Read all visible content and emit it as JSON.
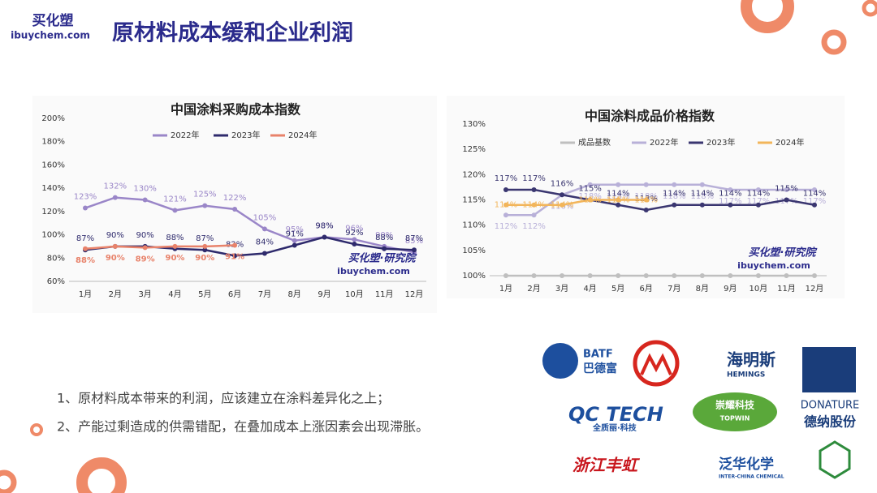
{
  "header": {
    "brand": "买化塑",
    "site": "ibuychem.com",
    "title": "原材料成本缓和企业利润"
  },
  "chart_data": [
    {
      "type": "line",
      "title": "中国涂料采购成本指数",
      "categories": [
        "1月",
        "2月",
        "3月",
        "4月",
        "5月",
        "6月",
        "7月",
        "8月",
        "9月",
        "10月",
        "11月",
        "12月"
      ],
      "ylim": [
        60,
        200
      ],
      "yticks": [
        {
          "value": 60,
          "label": "60%"
        },
        {
          "value": 80,
          "label": "80%"
        },
        {
          "value": 100,
          "label": "100%"
        },
        {
          "value": 120,
          "label": "120%"
        },
        {
          "value": 140,
          "label": "140%"
        },
        {
          "value": 160,
          "label": "160%"
        },
        {
          "value": 180,
          "label": "180%"
        },
        {
          "value": 200,
          "label": "200%"
        }
      ],
      "legend": "top",
      "watermark": "买化塑·研究院",
      "watermark_site": "ibuychem.com",
      "series": [
        {
          "name": "2022年",
          "color": "#9a86c8",
          "values": [
            123,
            132,
            130,
            121,
            125,
            122,
            105,
            95,
            98,
            96,
            90,
            85
          ],
          "value_labels": [
            "123%",
            "132%",
            "130%",
            "121%",
            "125%",
            "122%",
            "105%",
            "95%",
            "98%",
            "96%",
            "90%",
            "85%"
          ]
        },
        {
          "name": "2023年",
          "color": "#2e2a6c",
          "values": [
            87,
            90,
            90,
            88,
            87,
            82,
            84,
            91,
            98,
            92,
            88,
            87
          ],
          "value_labels": [
            "87%",
            "90%",
            "90%",
            "88%",
            "87%",
            "82%",
            "84%",
            "91%",
            "98%",
            "92%",
            "88%",
            "87%"
          ]
        },
        {
          "name": "2024年",
          "color": "#e8826a",
          "values": [
            88,
            90,
            89,
            90,
            90,
            91,
            null,
            null,
            null,
            null,
            null,
            null
          ],
          "value_labels": [
            "88%",
            "90%",
            "89%",
            "90%",
            "90%",
            "91%",
            null,
            null,
            null,
            null,
            null,
            null
          ]
        }
      ]
    },
    {
      "type": "line",
      "title": "中国涂料成品价格指数",
      "categories": [
        "1月",
        "2月",
        "3月",
        "4月",
        "5月",
        "6月",
        "7月",
        "8月",
        "9月",
        "10月",
        "11月",
        "12月"
      ],
      "ylim": [
        100,
        130
      ],
      "yticks": [
        {
          "value": 100,
          "label": "100%"
        },
        {
          "value": 105,
          "label": "105%"
        },
        {
          "value": 110,
          "label": "110%"
        },
        {
          "value": 115,
          "label": "115%"
        },
        {
          "value": 120,
          "label": "120%"
        },
        {
          "value": 125,
          "label": "125%"
        },
        {
          "value": 130,
          "label": "130%"
        }
      ],
      "legend": "top",
      "watermark": "买化塑·研究院",
      "watermark_site": "ibuychem.com",
      "series": [
        {
          "name": "成品基数",
          "color": "#bfbfbf",
          "values": [
            100,
            100,
            100,
            100,
            100,
            100,
            100,
            100,
            100,
            100,
            100,
            100
          ]
        },
        {
          "name": "2022年",
          "color": "#b8b0d8",
          "values": [
            112,
            112,
            116,
            118,
            118,
            118,
            118,
            118,
            117,
            117,
            117,
            117
          ],
          "value_labels": [
            "112%",
            "112%",
            "116%",
            "118%",
            "118%",
            "118%",
            "118%",
            "118%",
            "117%",
            "117%",
            "117%",
            "117%"
          ]
        },
        {
          "name": "2023年",
          "color": "#3a3670",
          "values": [
            117,
            117,
            116,
            115,
            114,
            113,
            114,
            114,
            114,
            114,
            115,
            114
          ],
          "value_labels": [
            "117%",
            "117%",
            "116%",
            "115%",
            "114%",
            "113%",
            "114%",
            "114%",
            "114%",
            "114%",
            "115%",
            "114%"
          ]
        },
        {
          "name": "2024年",
          "color": "#f2b55a",
          "values": [
            114,
            114,
            114,
            115,
            115,
            115,
            null,
            null,
            null,
            null,
            null,
            null
          ],
          "value_labels": [
            "114%",
            "114%",
            "114%",
            "115%",
            "115%",
            "115%",
            null,
            null,
            null,
            null,
            null,
            null
          ]
        }
      ]
    }
  ],
  "bullets": [
    "1、原材料成本带来的利润，应该建立在涂料差异化之上；",
    "2、产能过剩造成的供需错配，在叠加成本上涨因素会出现滞胀。"
  ],
  "logos": [
    "BATF",
    "巴德富",
    "海明斯",
    "HEMINGS",
    "QC TECH",
    "全质丽·科技",
    "崇耀科技",
    "TOPWIN",
    "DONATURE",
    "德纳股份",
    "浙江丰虹",
    "泛华化学",
    "INTER-CHINA CHEMICAL"
  ]
}
